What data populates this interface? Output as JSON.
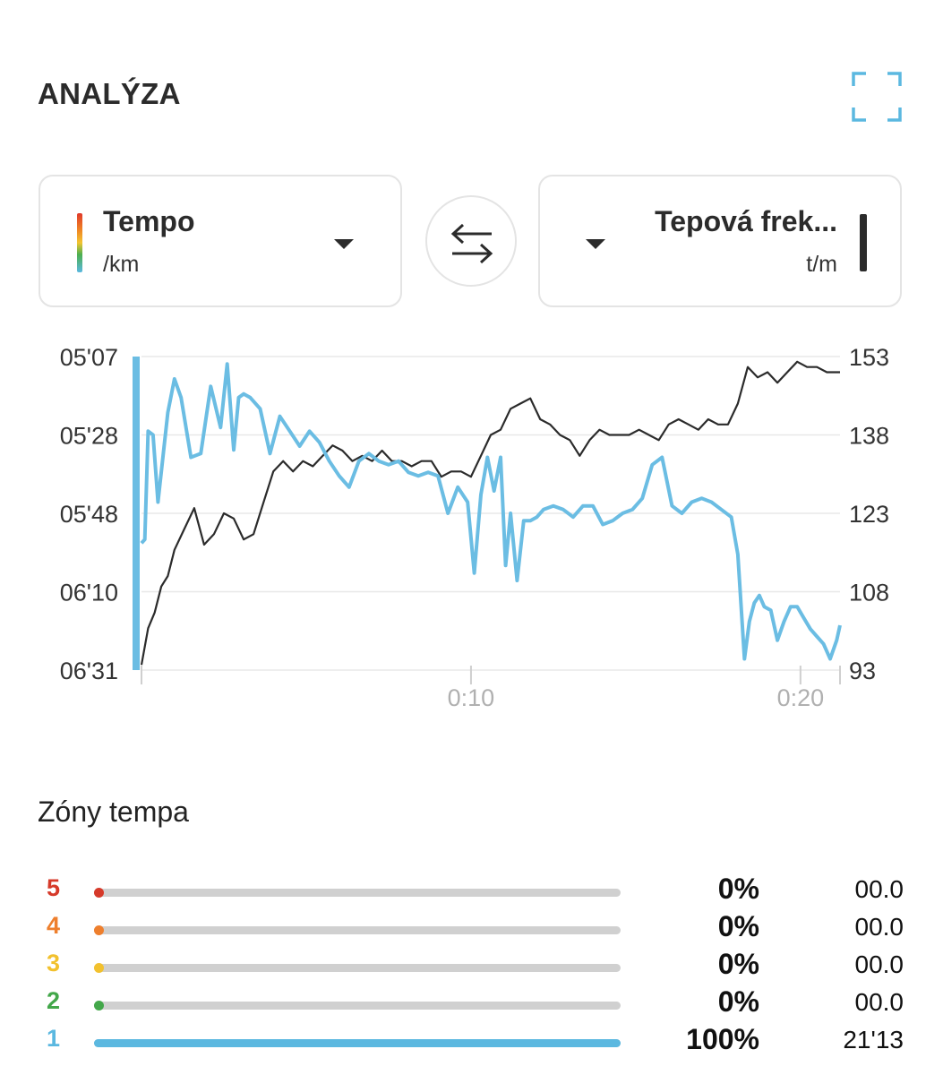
{
  "header": {
    "title": "ANALÝZA",
    "expand_icon": "expand-icon"
  },
  "selector_left": {
    "name": "Tempo",
    "unit": "/km"
  },
  "selector_right": {
    "name": "Tepová frek...",
    "unit": "t/m"
  },
  "swap_icon": "swap-arrows-icon",
  "colors": {
    "pace": "#6bbde3",
    "hr": "#2b2b2b",
    "zone5": "#d63a2a",
    "zone4": "#ee7f2d",
    "zone3": "#f2c12e",
    "zone2": "#43a74a",
    "zone1": "#5bb8e0"
  },
  "chart_data": {
    "type": "line",
    "y_left_ticks": [
      "05'07",
      "05'28",
      "05'48",
      "06'10",
      "06'31"
    ],
    "y_right_ticks": [
      "153",
      "138",
      "123",
      "108",
      "93"
    ],
    "x_ticks": [
      "0:10",
      "0:20"
    ],
    "x_range_minutes": [
      0,
      21.2
    ],
    "y_left_range_seconds_per_km": [
      307,
      391
    ],
    "y_right_range_bpm": [
      93,
      153
    ],
    "grid": true,
    "series": [
      {
        "unit": "/km",
        "x_minutes": [
          0,
          0.1,
          0.2,
          0.35,
          0.5,
          0.8,
          1.0,
          1.2,
          1.5,
          1.8,
          2.1,
          2.4,
          2.6,
          2.8,
          2.95,
          3.1,
          3.3,
          3.6,
          3.9,
          4.2,
          4.5,
          4.8,
          5.1,
          5.4,
          5.7,
          6.0,
          6.3,
          6.6,
          6.9,
          7.2,
          7.5,
          7.8,
          8.1,
          8.4,
          8.7,
          9.0,
          9.3,
          9.6,
          9.9,
          10.1,
          10.3,
          10.5,
          10.7,
          10.9,
          11.05,
          11.2,
          11.4,
          11.6,
          11.8,
          12.0,
          12.2,
          12.5,
          12.8,
          13.1,
          13.4,
          13.7,
          14.0,
          14.3,
          14.6,
          14.9,
          15.2,
          15.5,
          15.8,
          16.1,
          16.4,
          16.7,
          17.0,
          17.3,
          17.6,
          17.9,
          18.1,
          18.3,
          18.45,
          18.6,
          18.75,
          18.9,
          19.1,
          19.3,
          19.5,
          19.7,
          19.9,
          20.1,
          20.3,
          20.5,
          20.7,
          20.9,
          21.1,
          21.2
        ],
        "y": [
          357,
          356,
          327,
          328,
          346,
          322,
          313,
          318,
          334,
          333,
          315,
          326,
          309,
          332,
          318,
          317,
          318,
          321,
          333,
          323,
          327,
          331,
          327,
          330,
          335,
          339,
          342,
          335,
          333,
          335,
          336,
          335,
          338,
          339,
          338,
          339,
          349,
          342,
          346,
          365,
          344,
          334,
          343,
          334,
          363,
          349,
          367,
          351,
          351,
          350,
          348,
          347,
          348,
          350,
          347,
          347,
          352,
          351,
          349,
          348,
          345,
          336,
          334,
          347,
          349,
          346,
          345,
          346,
          348,
          350,
          360,
          388,
          378,
          373,
          371,
          374,
          375,
          383,
          378,
          374,
          374,
          377,
          380,
          382,
          384,
          388,
          383,
          379
        ]
      },
      {
        "unit": "t/m",
        "x_minutes": [
          0,
          0.2,
          0.4,
          0.6,
          0.8,
          1.0,
          1.3,
          1.6,
          1.9,
          2.2,
          2.5,
          2.8,
          3.1,
          3.4,
          3.7,
          4.0,
          4.3,
          4.6,
          4.9,
          5.2,
          5.5,
          5.8,
          6.1,
          6.4,
          6.7,
          7.0,
          7.3,
          7.6,
          7.9,
          8.2,
          8.5,
          8.8,
          9.1,
          9.4,
          9.7,
          10.0,
          10.3,
          10.6,
          10.9,
          11.2,
          11.5,
          11.8,
          12.1,
          12.4,
          12.7,
          13.0,
          13.3,
          13.6,
          13.9,
          14.2,
          14.5,
          14.8,
          15.1,
          15.4,
          15.7,
          16.0,
          16.3,
          16.6,
          16.9,
          17.2,
          17.5,
          17.8,
          18.1,
          18.4,
          18.7,
          19.0,
          19.3,
          19.6,
          19.9,
          20.2,
          20.5,
          20.8,
          21.0,
          21.2
        ],
        "y": [
          94,
          101,
          104,
          109,
          111,
          116,
          120,
          124,
          117,
          119,
          123,
          122,
          118,
          119,
          125,
          131,
          133,
          131,
          133,
          132,
          134,
          136,
          135,
          133,
          134,
          133,
          135,
          133,
          133,
          132,
          133,
          133,
          130,
          131,
          131,
          130,
          134,
          138,
          139,
          143,
          144,
          145,
          141,
          140,
          138,
          137,
          134,
          137,
          139,
          138,
          138,
          138,
          139,
          138,
          137,
          140,
          141,
          140,
          139,
          141,
          140,
          140,
          144,
          151,
          149,
          150,
          148,
          150,
          152,
          151,
          151,
          150,
          150,
          150
        ]
      }
    ]
  },
  "zones": {
    "title": "Zóny tempa",
    "rows": [
      {
        "num": "5",
        "pct": "0%",
        "time": "00.0",
        "fraction": 0
      },
      {
        "num": "4",
        "pct": "0%",
        "time": "00.0",
        "fraction": 0
      },
      {
        "num": "3",
        "pct": "0%",
        "time": "00.0",
        "fraction": 0
      },
      {
        "num": "2",
        "pct": "0%",
        "time": "00.0",
        "fraction": 0
      },
      {
        "num": "1",
        "pct": "100%",
        "time": "21'13",
        "fraction": 1
      }
    ]
  }
}
